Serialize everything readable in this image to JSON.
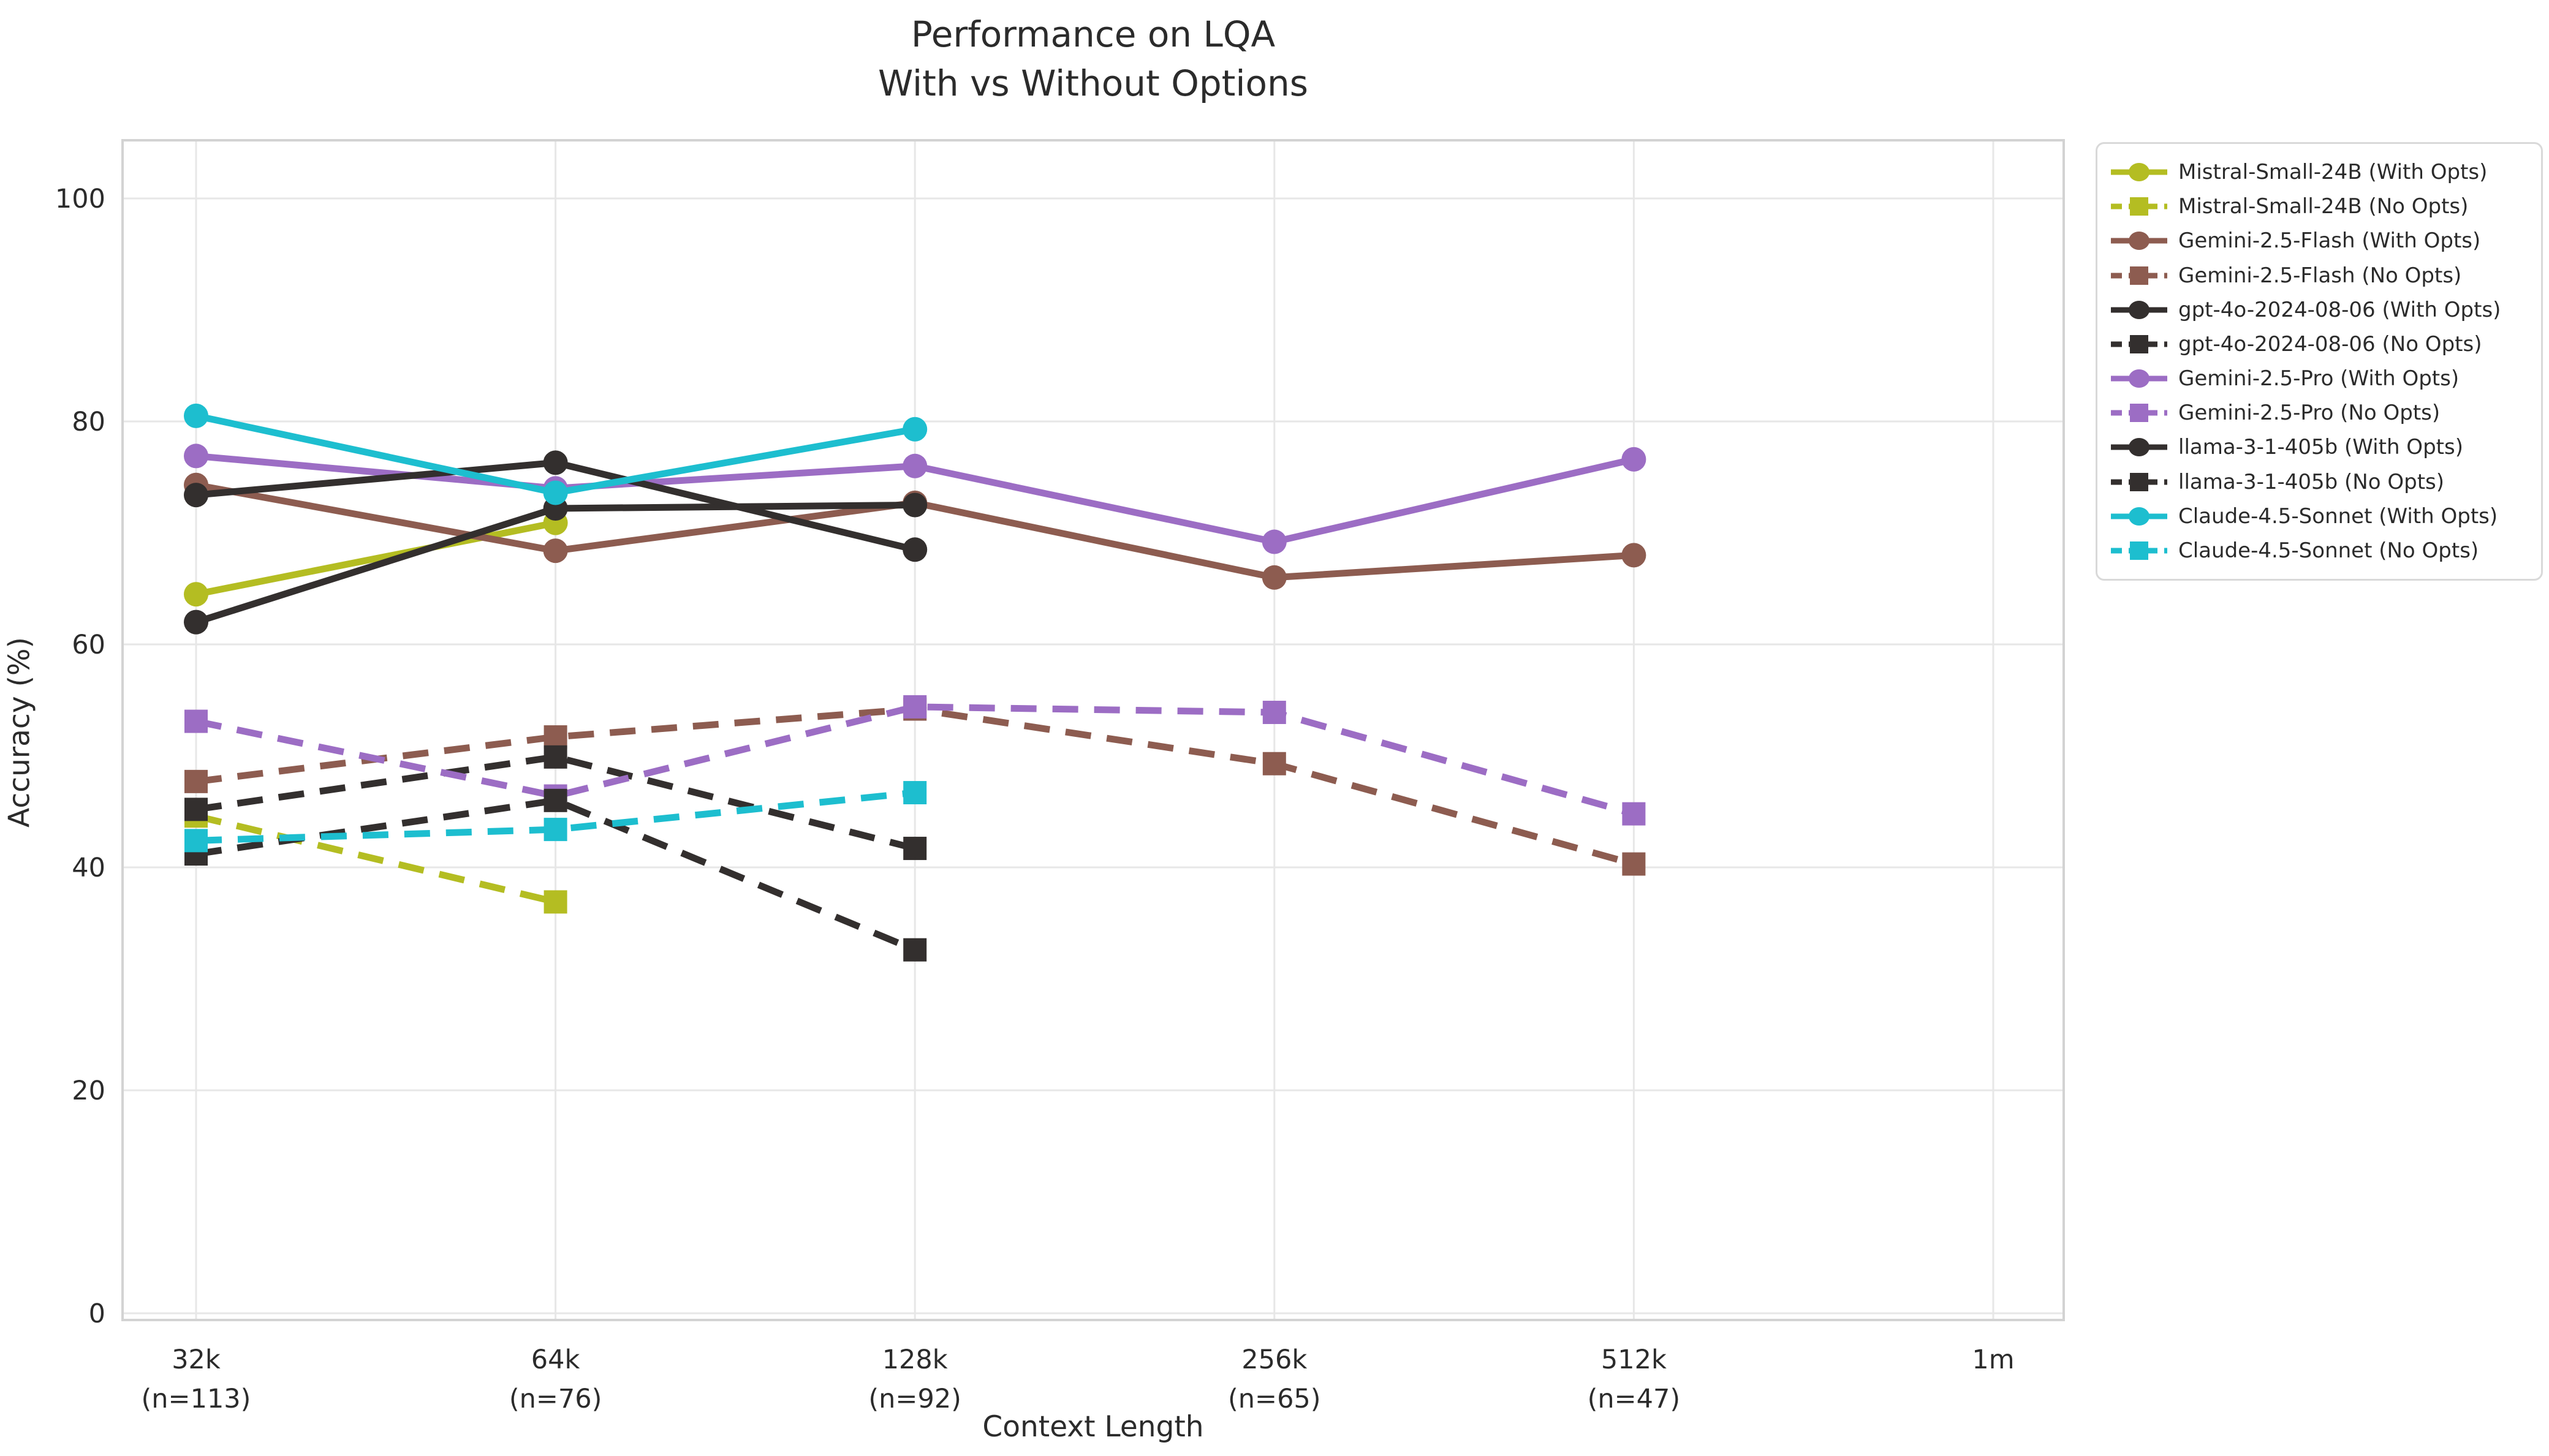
{
  "title": {
    "line1": "Performance on LQA",
    "line2": "With vs Without Options"
  },
  "axes": {
    "y_label": "Accuracy (%)",
    "x_label": "Context Length",
    "y_ticks": [
      0,
      20,
      40,
      60,
      80,
      100
    ],
    "x_ticks": [
      {
        "label": "32k",
        "sub": "(n=113)"
      },
      {
        "label": "64k",
        "sub": "(n=76)"
      },
      {
        "label": "128k",
        "sub": "(n=92)"
      },
      {
        "label": "256k",
        "sub": "(n=65)"
      },
      {
        "label": "512k",
        "sub": "(n=47)"
      },
      {
        "label": "1m",
        "sub": ""
      }
    ]
  },
  "colors": {
    "olive": "#b4bd22",
    "brown": "#8d5c50",
    "dark": "#332f2e",
    "purple": "#9c6dc4",
    "cyan": "#1dbecf",
    "grid": "#e7e7e7",
    "spine": "#d3d3d3",
    "text": "#2b2b2b",
    "legend_border": "#d9d9d9",
    "background": "#ffffff"
  },
  "chart_data": {
    "type": "line",
    "title": "Performance on LQA\nWith vs Without Options",
    "xlabel": "Context Length",
    "ylabel": "Accuracy (%)",
    "ylim": [
      0,
      105
    ],
    "grid": true,
    "legend_position": "outside-right",
    "categories": [
      "32k",
      "64k",
      "128k",
      "256k",
      "512k",
      "1m"
    ],
    "series": [
      {
        "name": "Mistral-Small-24B (With Opts)",
        "color_key": "olive",
        "line_style": "solid",
        "marker": "circle",
        "values": [
          64.5,
          70.9,
          null,
          null,
          null,
          null
        ]
      },
      {
        "name": "Mistral-Small-24B (No Opts)",
        "color_key": "olive",
        "line_style": "dashed",
        "marker": "square",
        "values": [
          44.6,
          36.9,
          null,
          null,
          null,
          null
        ]
      },
      {
        "name": "Gemini-2.5-Flash (With Opts)",
        "color_key": "brown",
        "line_style": "solid",
        "marker": "circle",
        "values": [
          74.3,
          68.4,
          72.7,
          66.0,
          68.0,
          null
        ]
      },
      {
        "name": "Gemini-2.5-Flash (No Opts)",
        "color_key": "brown",
        "line_style": "dashed",
        "marker": "square",
        "values": [
          47.7,
          51.7,
          54.2,
          49.3,
          40.3,
          null
        ]
      },
      {
        "name": "gpt-4o-2024-08-06 (With Opts)",
        "color_key": "dark",
        "line_style": "solid",
        "marker": "circle",
        "values": [
          62.0,
          72.2,
          72.5,
          null,
          null,
          null
        ]
      },
      {
        "name": "gpt-4o-2024-08-06 (No Opts)",
        "color_key": "dark",
        "line_style": "dashed",
        "marker": "square",
        "values": [
          45.2,
          49.9,
          41.7,
          null,
          null,
          null
        ]
      },
      {
        "name": "Gemini-2.5-Pro (With Opts)",
        "color_key": "purple",
        "line_style": "solid",
        "marker": "circle",
        "values": [
          76.9,
          74.0,
          76.0,
          69.2,
          76.6,
          null
        ]
      },
      {
        "name": "Gemini-2.5-Pro (No Opts)",
        "color_key": "purple",
        "line_style": "dashed",
        "marker": "square",
        "values": [
          53.1,
          46.4,
          54.4,
          53.9,
          44.8,
          null
        ]
      },
      {
        "name": "llama-3-1-405b (With Opts)",
        "color_key": "dark",
        "line_style": "solid",
        "marker": "circle",
        "values": [
          73.4,
          76.3,
          68.5,
          null,
          null,
          null
        ]
      },
      {
        "name": "llama-3-1-405b (No Opts)",
        "color_key": "dark",
        "line_style": "dashed",
        "marker": "square",
        "values": [
          41.2,
          46.0,
          32.6,
          null,
          null,
          null
        ]
      },
      {
        "name": "Claude-4.5-Sonnet (With Opts)",
        "color_key": "cyan",
        "line_style": "solid",
        "marker": "circle",
        "values": [
          80.5,
          73.6,
          79.3,
          null,
          null,
          null
        ]
      },
      {
        "name": "Claude-4.5-Sonnet (No Opts)",
        "color_key": "cyan",
        "line_style": "dashed",
        "marker": "square",
        "values": [
          42.4,
          43.4,
          46.7,
          null,
          null,
          null
        ]
      }
    ]
  }
}
